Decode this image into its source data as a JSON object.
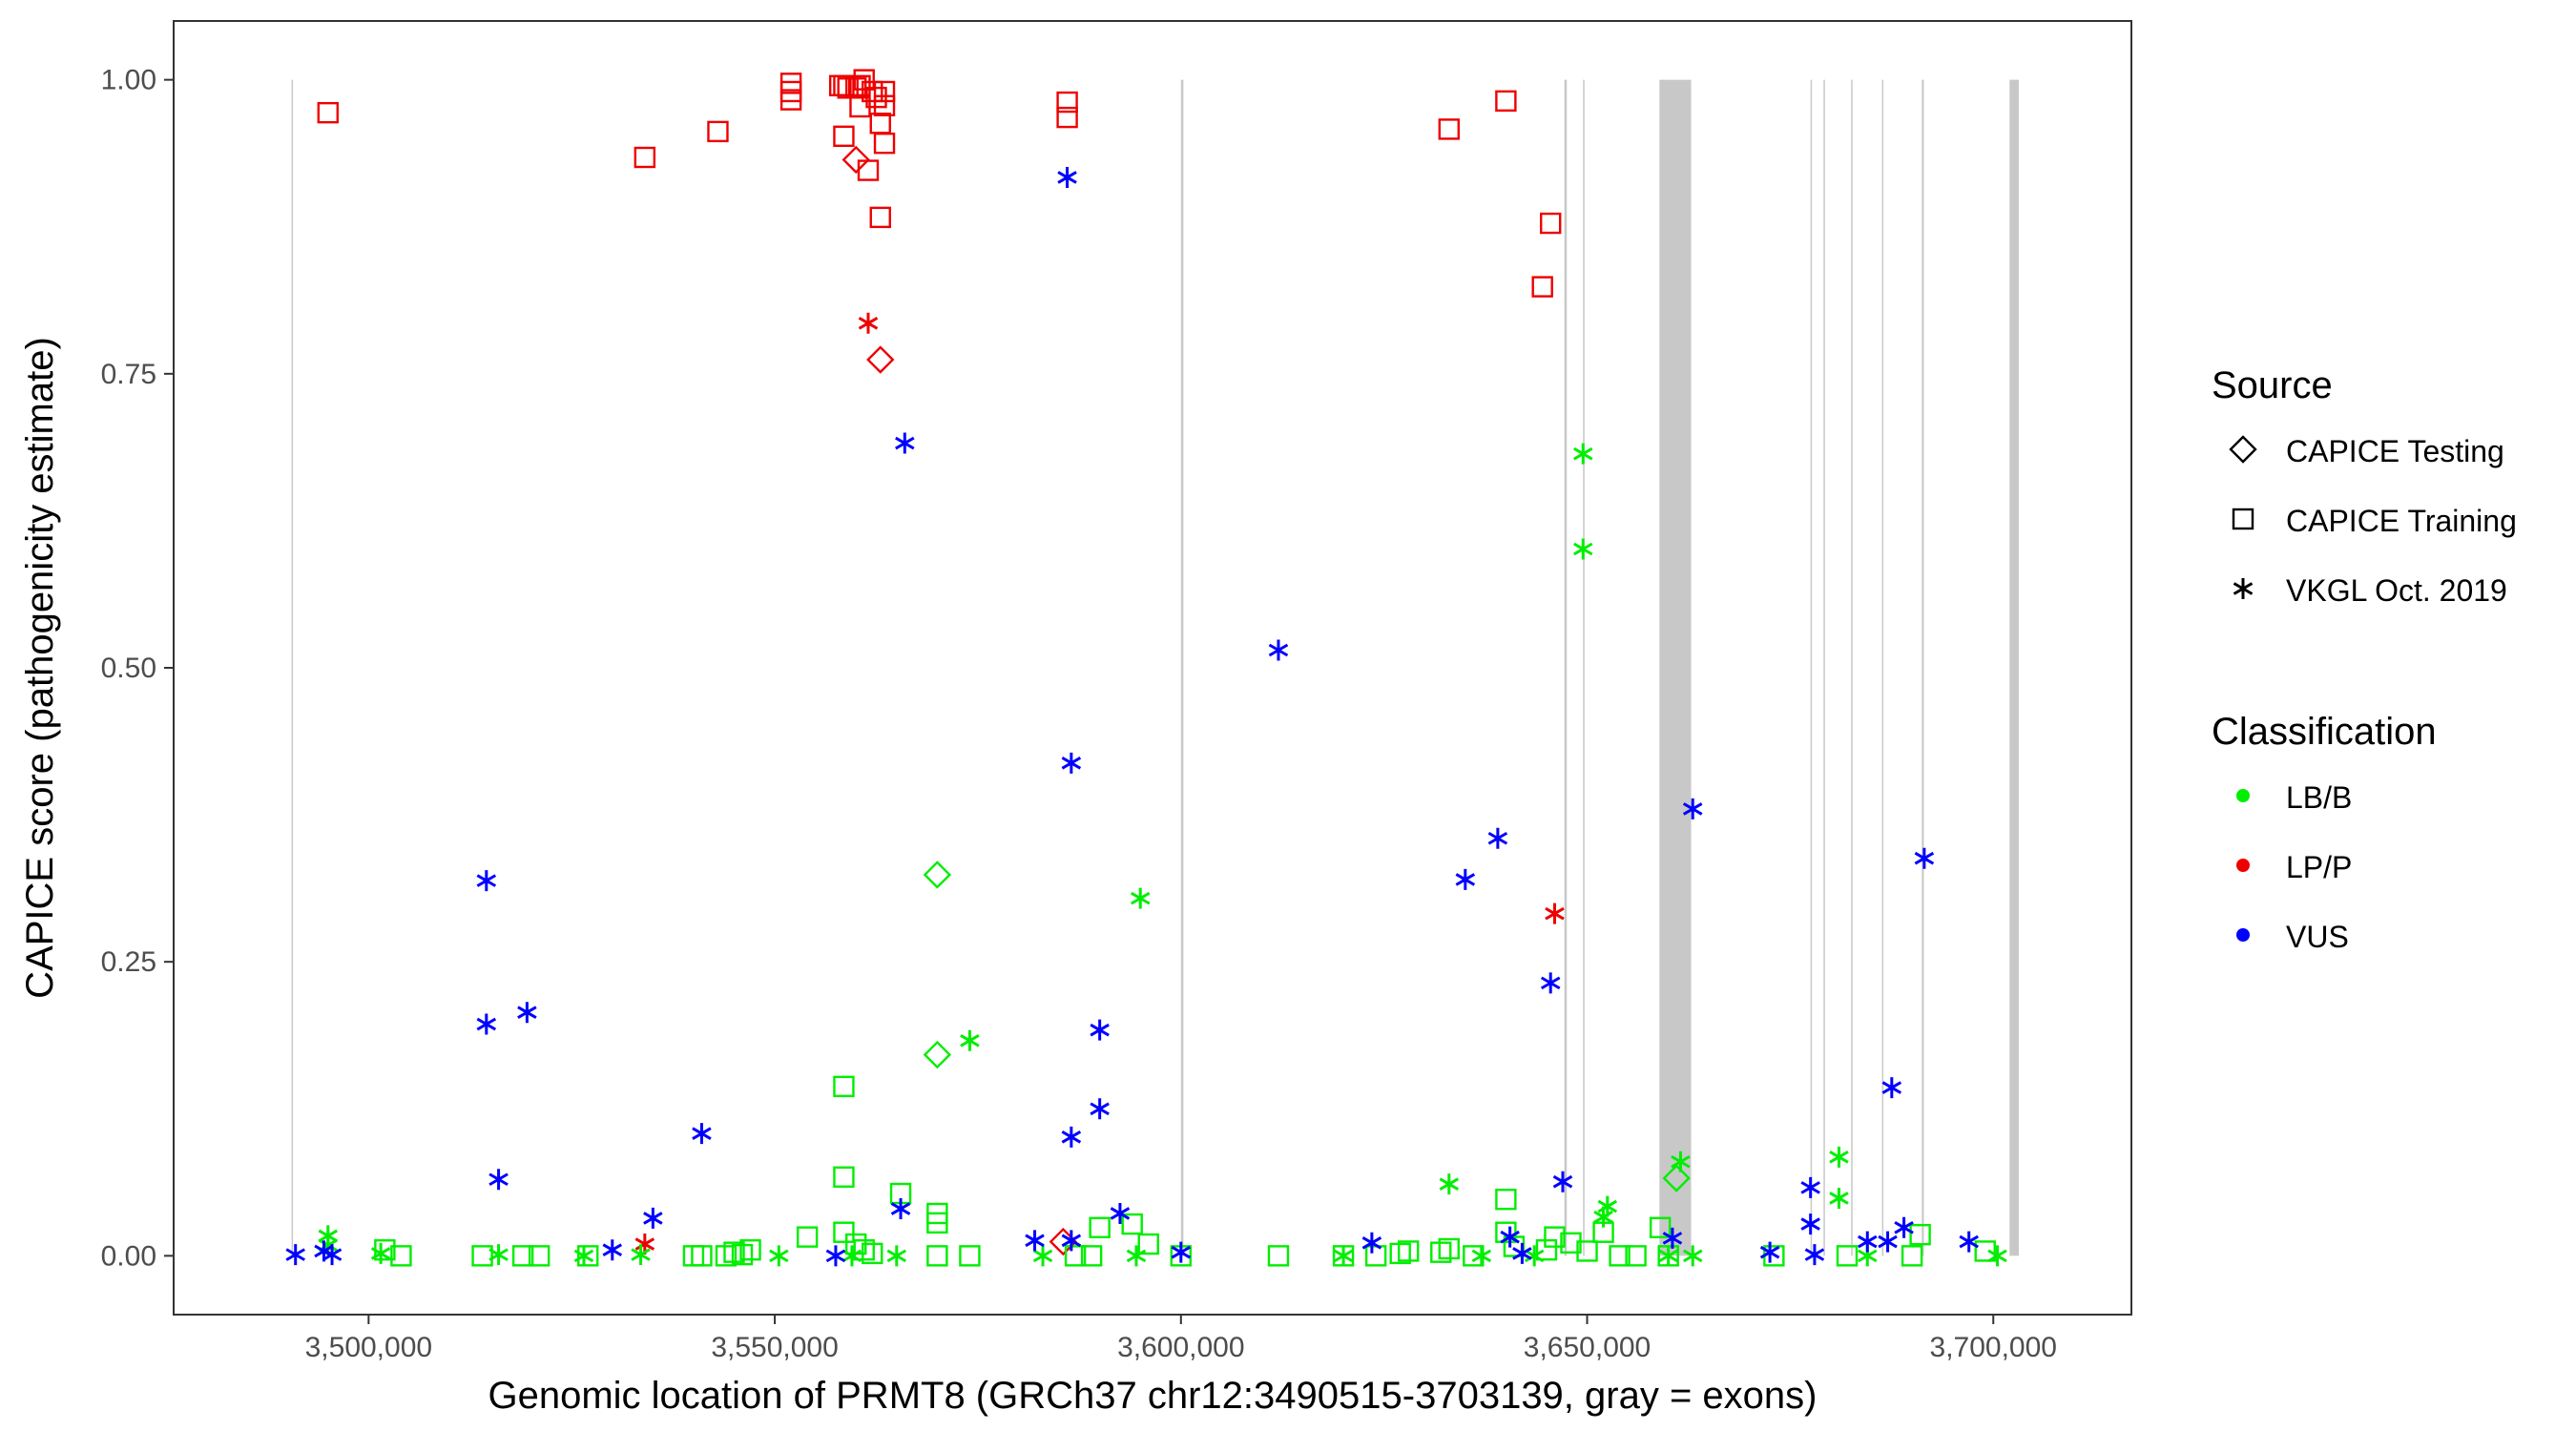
{
  "chart_data": {
    "type": "scatter",
    "title": "",
    "xlabel": "Genomic location of PRMT8 (GRCh37 chr12:3490515-3703139, gray = exons)",
    "ylabel": "CAPICE score (pathogenicity estimate)",
    "xlim": [
      3476000,
      3717000
    ],
    "ylim": [
      -0.05,
      1.05
    ],
    "xticks": [
      3500000,
      3550000,
      3600000,
      3650000,
      3700000
    ],
    "xtick_labels": [
      "3,500,000",
      "3,550,000",
      "3,600,000",
      "3,650,000",
      "3,700,000"
    ],
    "yticks": [
      0,
      0.25,
      0.5,
      0.75,
      1.0
    ],
    "ytick_labels": [
      "0.00",
      "0.25",
      "0.50",
      "0.75",
      "1.00"
    ],
    "grid": false,
    "exons": [
      [
        3490515,
        3490600
      ],
      [
        3600000,
        3600300
      ],
      [
        3647200,
        3647500
      ],
      [
        3649500,
        3649650
      ],
      [
        3658900,
        3662800
      ],
      [
        3677500,
        3677650
      ],
      [
        3679100,
        3679250
      ],
      [
        3682500,
        3682650
      ],
      [
        3686300,
        3686450
      ],
      [
        3691200,
        3691450
      ],
      [
        3702000,
        3703139
      ]
    ],
    "legend": {
      "placement": "right",
      "source_title": "Source",
      "source_entries": [
        {
          "shape": "diamond",
          "label": "CAPICE Testing"
        },
        {
          "shape": "square",
          "label": "CAPICE Training"
        },
        {
          "shape": "asterisk",
          "label": "VKGL Oct. 2019"
        }
      ],
      "class_title": "Classification",
      "class_entries": [
        {
          "label": "LB/B",
          "color": "#00ee00"
        },
        {
          "label": "LP/P",
          "color": "#ee0000"
        },
        {
          "label": "VUS",
          "color": "#0000ff"
        }
      ]
    },
    "series": [
      {
        "name": "CAPICE Testing / LP/P",
        "shape": "diamond",
        "color": "#ee0000",
        "points": [
          [
            3560000,
            0.932
          ],
          [
            3563000,
            0.762
          ],
          [
            3585500,
            0.012
          ]
        ]
      },
      {
        "name": "CAPICE Testing / LB/B",
        "shape": "diamond",
        "color": "#00ee00",
        "points": [
          [
            3570000,
            0.324
          ],
          [
            3570000,
            0.171
          ],
          [
            3661000,
            0.066
          ]
        ]
      },
      {
        "name": "CAPICE Training / LP/P",
        "shape": "square",
        "color": "#ee0000",
        "points": [
          [
            3495000,
            0.972
          ],
          [
            3534000,
            0.934
          ],
          [
            3543000,
            0.956
          ],
          [
            3552000,
            0.997
          ],
          [
            3552000,
            0.99
          ],
          [
            3552000,
            0.983
          ],
          [
            3558000,
            0.995
          ],
          [
            3558500,
            0.995
          ],
          [
            3559000,
            0.993
          ],
          [
            3560000,
            0.993
          ],
          [
            3560500,
            0.995
          ],
          [
            3561000,
            1.0
          ],
          [
            3562000,
            0.99
          ],
          [
            3563500,
            0.99
          ],
          [
            3560500,
            0.977
          ],
          [
            3562500,
            0.985
          ],
          [
            3563500,
            0.978
          ],
          [
            3558500,
            0.952
          ],
          [
            3563000,
            0.963
          ],
          [
            3563500,
            0.946
          ],
          [
            3561500,
            0.923
          ],
          [
            3563000,
            0.883
          ],
          [
            3586000,
            0.981
          ],
          [
            3586000,
            0.968
          ],
          [
            3633000,
            0.958
          ],
          [
            3640000,
            0.982
          ],
          [
            3645500,
            0.878
          ],
          [
            3644500,
            0.824
          ]
        ]
      },
      {
        "name": "CAPICE Training / LB/B",
        "shape": "square",
        "color": "#00ee00",
        "points": [
          [
            3502000,
            0.005
          ],
          [
            3504000,
            0.0
          ],
          [
            3514000,
            0.0
          ],
          [
            3519000,
            0.0
          ],
          [
            3521000,
            0.0
          ],
          [
            3527000,
            0.0
          ],
          [
            3540000,
            0.0
          ],
          [
            3541000,
            0.0
          ],
          [
            3544000,
            0.0
          ],
          [
            3545000,
            0.003
          ],
          [
            3546000,
            0.001
          ],
          [
            3547000,
            0.005
          ],
          [
            3554000,
            0.016
          ],
          [
            3558500,
            0.144
          ],
          [
            3558500,
            0.067
          ],
          [
            3558500,
            0.02
          ],
          [
            3560000,
            0.01
          ],
          [
            3561000,
            0.005
          ],
          [
            3562000,
            0.002
          ],
          [
            3565500,
            0.053
          ],
          [
            3570000,
            0.036
          ],
          [
            3570000,
            0.028
          ],
          [
            3570000,
            0.0
          ],
          [
            3574000,
            0.0
          ],
          [
            3587000,
            0.0
          ],
          [
            3589000,
            0.0
          ],
          [
            3590000,
            0.024
          ],
          [
            3594000,
            0.027
          ],
          [
            3596000,
            0.01
          ],
          [
            3600000,
            0.0
          ],
          [
            3612000,
            0.0
          ],
          [
            3620000,
            0.0
          ],
          [
            3624000,
            0.0
          ],
          [
            3627000,
            0.002
          ],
          [
            3628000,
            0.004
          ],
          [
            3632000,
            0.003
          ],
          [
            3633000,
            0.006
          ],
          [
            3636000,
            0.0
          ],
          [
            3640000,
            0.048
          ],
          [
            3640000,
            0.02
          ],
          [
            3641000,
            0.008
          ],
          [
            3645000,
            0.005
          ],
          [
            3646000,
            0.016
          ],
          [
            3648000,
            0.011
          ],
          [
            3650000,
            0.004
          ],
          [
            3652000,
            0.02
          ],
          [
            3654000,
            0.0
          ],
          [
            3656000,
            0.0
          ],
          [
            3659000,
            0.024
          ],
          [
            3660000,
            0.0
          ],
          [
            3673000,
            0.0
          ],
          [
            3682000,
            0.0
          ],
          [
            3690000,
            0.0
          ],
          [
            3691000,
            0.018
          ],
          [
            3699000,
            0.004
          ]
        ]
      },
      {
        "name": "VKGL Oct. 2019 / LP/P",
        "shape": "asterisk",
        "color": "#ee0000",
        "points": [
          [
            3561500,
            0.793
          ],
          [
            3646000,
            0.291
          ],
          [
            3534000,
            0.01
          ]
        ]
      },
      {
        "name": "VKGL Oct. 2019 / LB/B",
        "shape": "asterisk",
        "color": "#00ee00",
        "points": [
          [
            3649500,
            0.682
          ],
          [
            3649500,
            0.601
          ],
          [
            3595000,
            0.304
          ],
          [
            3574000,
            0.183
          ],
          [
            3661500,
            0.08
          ],
          [
            3633000,
            0.061
          ],
          [
            3652500,
            0.042
          ],
          [
            3652000,
            0.033
          ],
          [
            3681000,
            0.084
          ],
          [
            3681000,
            0.049
          ],
          [
            3495000,
            0.017
          ],
          [
            3495000,
            0.009
          ],
          [
            3501500,
            0.002
          ],
          [
            3516000,
            0.001
          ],
          [
            3526500,
            0.0
          ],
          [
            3533500,
            0.001
          ],
          [
            3550500,
            0.0
          ],
          [
            3559500,
            0.0
          ],
          [
            3565000,
            0.0
          ],
          [
            3583000,
            0.0
          ],
          [
            3594500,
            0.0
          ],
          [
            3620000,
            0.0
          ],
          [
            3637000,
            0.0
          ],
          [
            3643500,
            0.0
          ],
          [
            3660000,
            0.0
          ],
          [
            3663000,
            0.0
          ],
          [
            3684500,
            0.0
          ],
          [
            3700500,
            0.0
          ]
        ]
      },
      {
        "name": "VKGL Oct. 2019 / VUS",
        "shape": "asterisk",
        "color": "#0000ff",
        "points": [
          [
            3586000,
            0.917
          ],
          [
            3566000,
            0.691
          ],
          [
            3612000,
            0.515
          ],
          [
            3586500,
            0.419
          ],
          [
            3663000,
            0.38
          ],
          [
            3691500,
            0.338
          ],
          [
            3639000,
            0.355
          ],
          [
            3635000,
            0.32
          ],
          [
            3514500,
            0.319
          ],
          [
            3645500,
            0.232
          ],
          [
            3519500,
            0.207
          ],
          [
            3514500,
            0.197
          ],
          [
            3590000,
            0.192
          ],
          [
            3687500,
            0.143
          ],
          [
            3590000,
            0.125
          ],
          [
            3541000,
            0.104
          ],
          [
            3586500,
            0.101
          ],
          [
            3516000,
            0.065
          ],
          [
            3647000,
            0.063
          ],
          [
            3677500,
            0.058
          ],
          [
            3592500,
            0.036
          ],
          [
            3565500,
            0.04
          ],
          [
            3535000,
            0.032
          ],
          [
            3677500,
            0.027
          ],
          [
            3689000,
            0.024
          ],
          [
            3660500,
            0.015
          ],
          [
            3640500,
            0.016
          ],
          [
            3687000,
            0.012
          ],
          [
            3582000,
            0.013
          ],
          [
            3586500,
            0.013
          ],
          [
            3623500,
            0.011
          ],
          [
            3684500,
            0.012
          ],
          [
            3697000,
            0.012
          ],
          [
            3530000,
            0.005
          ],
          [
            3600000,
            0.003
          ],
          [
            3672500,
            0.003
          ],
          [
            3491000,
            0.001
          ],
          [
            3494500,
            0.004
          ],
          [
            3495500,
            0.001
          ],
          [
            3557500,
            0.0
          ],
          [
            3642000,
            0.002
          ],
          [
            3678000,
            0.001
          ]
        ]
      }
    ]
  }
}
